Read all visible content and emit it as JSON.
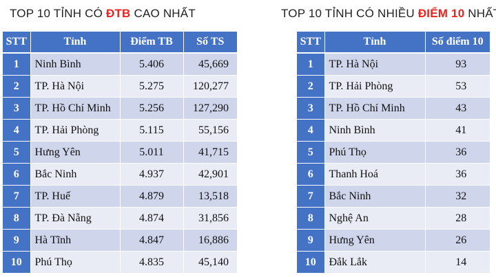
{
  "left": {
    "title_prefix": "TOP 10 TỈNH CÓ ",
    "title_highlight": "ĐTB",
    "title_suffix": " CAO NHẤT",
    "headers": [
      "STT",
      "Tỉnh",
      "Điểm TB",
      "Số TS"
    ],
    "rows": [
      {
        "stt": "1",
        "province": "Ninh Bình",
        "score": "5.406",
        "count": "45,669"
      },
      {
        "stt": "2",
        "province": "TP. Hà Nội",
        "score": "5.275",
        "count": "120,277"
      },
      {
        "stt": "3",
        "province": "TP. Hồ Chí Minh",
        "score": "5.256",
        "count": "127,290"
      },
      {
        "stt": "4",
        "province": "TP. Hải Phòng",
        "score": "5.115",
        "count": "55,156"
      },
      {
        "stt": "5",
        "province": "Hưng Yên",
        "score": "5.011",
        "count": "41,715"
      },
      {
        "stt": "6",
        "province": "Bắc Ninh",
        "score": "4.937",
        "count": "42,901"
      },
      {
        "stt": "7",
        "province": "TP. Huế",
        "score": "4.879",
        "count": "13,518"
      },
      {
        "stt": "8",
        "province": "TP. Đà Nẵng",
        "score": "4.874",
        "count": "31,856"
      },
      {
        "stt": "9",
        "province": "Hà Tĩnh",
        "score": "4.847",
        "count": "16,886"
      },
      {
        "stt": "10",
        "province": "Phú Thọ",
        "score": "4.835",
        "count": "45,140"
      }
    ]
  },
  "right": {
    "title_prefix": "TOP 10 TỈNH CÓ NHIỀU ",
    "title_highlight": "ĐIỂM 10",
    "title_suffix": " NHẤT",
    "headers": [
      "STT",
      "Tỉnh",
      "Số điểm 10"
    ],
    "rows": [
      {
        "stt": "1",
        "province": "TP. Hà Nội",
        "tens": "93"
      },
      {
        "stt": "2",
        "province": "TP. Hải Phòng",
        "tens": "53"
      },
      {
        "stt": "3",
        "province": "TP. Hồ Chí Minh",
        "tens": "43"
      },
      {
        "stt": "4",
        "province": "Ninh Bình",
        "tens": "41"
      },
      {
        "stt": "5",
        "province": "Phú Thọ",
        "tens": "36"
      },
      {
        "stt": "6",
        "province": "Thanh Hoá",
        "tens": "36"
      },
      {
        "stt": "7",
        "province": "Bắc Ninh",
        "tens": "32"
      },
      {
        "stt": "8",
        "province": "Nghệ An",
        "tens": "28"
      },
      {
        "stt": "9",
        "province": "Hưng Yên",
        "tens": "26"
      },
      {
        "stt": "10",
        "province": "Đắk Lắk",
        "tens": "14"
      }
    ]
  },
  "colors": {
    "header_blue": "#4472c4",
    "row_dark": "#cfd5ea",
    "row_light": "#e9ebf5",
    "highlight_red": "#e8231f"
  }
}
